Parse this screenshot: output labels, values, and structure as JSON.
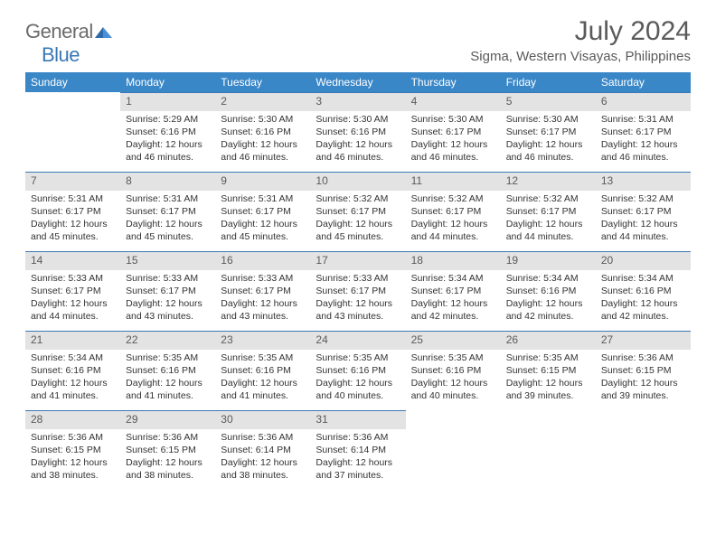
{
  "brand": {
    "part1": "General",
    "part2": "Blue"
  },
  "title": "July 2024",
  "location": "Sigma, Western Visayas, Philippines",
  "colors": {
    "header_bg": "#3a87c8",
    "header_text": "#ffffff",
    "daynum_bg": "#e3e3e3",
    "daynum_text": "#5a5a5a",
    "rule": "#3a78b5",
    "title_text": "#5a5a5a",
    "logo_grey": "#6b6b6b",
    "logo_blue": "#3a78b5"
  },
  "weekdays": [
    "Sunday",
    "Monday",
    "Tuesday",
    "Wednesday",
    "Thursday",
    "Friday",
    "Saturday"
  ],
  "weeks": [
    [
      null,
      {
        "n": "1",
        "sr": "Sunrise: 5:29 AM",
        "ss": "Sunset: 6:16 PM",
        "d1": "Daylight: 12 hours",
        "d2": "and 46 minutes."
      },
      {
        "n": "2",
        "sr": "Sunrise: 5:30 AM",
        "ss": "Sunset: 6:16 PM",
        "d1": "Daylight: 12 hours",
        "d2": "and 46 minutes."
      },
      {
        "n": "3",
        "sr": "Sunrise: 5:30 AM",
        "ss": "Sunset: 6:16 PM",
        "d1": "Daylight: 12 hours",
        "d2": "and 46 minutes."
      },
      {
        "n": "4",
        "sr": "Sunrise: 5:30 AM",
        "ss": "Sunset: 6:17 PM",
        "d1": "Daylight: 12 hours",
        "d2": "and 46 minutes."
      },
      {
        "n": "5",
        "sr": "Sunrise: 5:30 AM",
        "ss": "Sunset: 6:17 PM",
        "d1": "Daylight: 12 hours",
        "d2": "and 46 minutes."
      },
      {
        "n": "6",
        "sr": "Sunrise: 5:31 AM",
        "ss": "Sunset: 6:17 PM",
        "d1": "Daylight: 12 hours",
        "d2": "and 46 minutes."
      }
    ],
    [
      {
        "n": "7",
        "sr": "Sunrise: 5:31 AM",
        "ss": "Sunset: 6:17 PM",
        "d1": "Daylight: 12 hours",
        "d2": "and 45 minutes."
      },
      {
        "n": "8",
        "sr": "Sunrise: 5:31 AM",
        "ss": "Sunset: 6:17 PM",
        "d1": "Daylight: 12 hours",
        "d2": "and 45 minutes."
      },
      {
        "n": "9",
        "sr": "Sunrise: 5:31 AM",
        "ss": "Sunset: 6:17 PM",
        "d1": "Daylight: 12 hours",
        "d2": "and 45 minutes."
      },
      {
        "n": "10",
        "sr": "Sunrise: 5:32 AM",
        "ss": "Sunset: 6:17 PM",
        "d1": "Daylight: 12 hours",
        "d2": "and 45 minutes."
      },
      {
        "n": "11",
        "sr": "Sunrise: 5:32 AM",
        "ss": "Sunset: 6:17 PM",
        "d1": "Daylight: 12 hours",
        "d2": "and 44 minutes."
      },
      {
        "n": "12",
        "sr": "Sunrise: 5:32 AM",
        "ss": "Sunset: 6:17 PM",
        "d1": "Daylight: 12 hours",
        "d2": "and 44 minutes."
      },
      {
        "n": "13",
        "sr": "Sunrise: 5:32 AM",
        "ss": "Sunset: 6:17 PM",
        "d1": "Daylight: 12 hours",
        "d2": "and 44 minutes."
      }
    ],
    [
      {
        "n": "14",
        "sr": "Sunrise: 5:33 AM",
        "ss": "Sunset: 6:17 PM",
        "d1": "Daylight: 12 hours",
        "d2": "and 44 minutes."
      },
      {
        "n": "15",
        "sr": "Sunrise: 5:33 AM",
        "ss": "Sunset: 6:17 PM",
        "d1": "Daylight: 12 hours",
        "d2": "and 43 minutes."
      },
      {
        "n": "16",
        "sr": "Sunrise: 5:33 AM",
        "ss": "Sunset: 6:17 PM",
        "d1": "Daylight: 12 hours",
        "d2": "and 43 minutes."
      },
      {
        "n": "17",
        "sr": "Sunrise: 5:33 AM",
        "ss": "Sunset: 6:17 PM",
        "d1": "Daylight: 12 hours",
        "d2": "and 43 minutes."
      },
      {
        "n": "18",
        "sr": "Sunrise: 5:34 AM",
        "ss": "Sunset: 6:17 PM",
        "d1": "Daylight: 12 hours",
        "d2": "and 42 minutes."
      },
      {
        "n": "19",
        "sr": "Sunrise: 5:34 AM",
        "ss": "Sunset: 6:16 PM",
        "d1": "Daylight: 12 hours",
        "d2": "and 42 minutes."
      },
      {
        "n": "20",
        "sr": "Sunrise: 5:34 AM",
        "ss": "Sunset: 6:16 PM",
        "d1": "Daylight: 12 hours",
        "d2": "and 42 minutes."
      }
    ],
    [
      {
        "n": "21",
        "sr": "Sunrise: 5:34 AM",
        "ss": "Sunset: 6:16 PM",
        "d1": "Daylight: 12 hours",
        "d2": "and 41 minutes."
      },
      {
        "n": "22",
        "sr": "Sunrise: 5:35 AM",
        "ss": "Sunset: 6:16 PM",
        "d1": "Daylight: 12 hours",
        "d2": "and 41 minutes."
      },
      {
        "n": "23",
        "sr": "Sunrise: 5:35 AM",
        "ss": "Sunset: 6:16 PM",
        "d1": "Daylight: 12 hours",
        "d2": "and 41 minutes."
      },
      {
        "n": "24",
        "sr": "Sunrise: 5:35 AM",
        "ss": "Sunset: 6:16 PM",
        "d1": "Daylight: 12 hours",
        "d2": "and 40 minutes."
      },
      {
        "n": "25",
        "sr": "Sunrise: 5:35 AM",
        "ss": "Sunset: 6:16 PM",
        "d1": "Daylight: 12 hours",
        "d2": "and 40 minutes."
      },
      {
        "n": "26",
        "sr": "Sunrise: 5:35 AM",
        "ss": "Sunset: 6:15 PM",
        "d1": "Daylight: 12 hours",
        "d2": "and 39 minutes."
      },
      {
        "n": "27",
        "sr": "Sunrise: 5:36 AM",
        "ss": "Sunset: 6:15 PM",
        "d1": "Daylight: 12 hours",
        "d2": "and 39 minutes."
      }
    ],
    [
      {
        "n": "28",
        "sr": "Sunrise: 5:36 AM",
        "ss": "Sunset: 6:15 PM",
        "d1": "Daylight: 12 hours",
        "d2": "and 38 minutes."
      },
      {
        "n": "29",
        "sr": "Sunrise: 5:36 AM",
        "ss": "Sunset: 6:15 PM",
        "d1": "Daylight: 12 hours",
        "d2": "and 38 minutes."
      },
      {
        "n": "30",
        "sr": "Sunrise: 5:36 AM",
        "ss": "Sunset: 6:14 PM",
        "d1": "Daylight: 12 hours",
        "d2": "and 38 minutes."
      },
      {
        "n": "31",
        "sr": "Sunrise: 5:36 AM",
        "ss": "Sunset: 6:14 PM",
        "d1": "Daylight: 12 hours",
        "d2": "and 37 minutes."
      },
      null,
      null,
      null
    ]
  ]
}
